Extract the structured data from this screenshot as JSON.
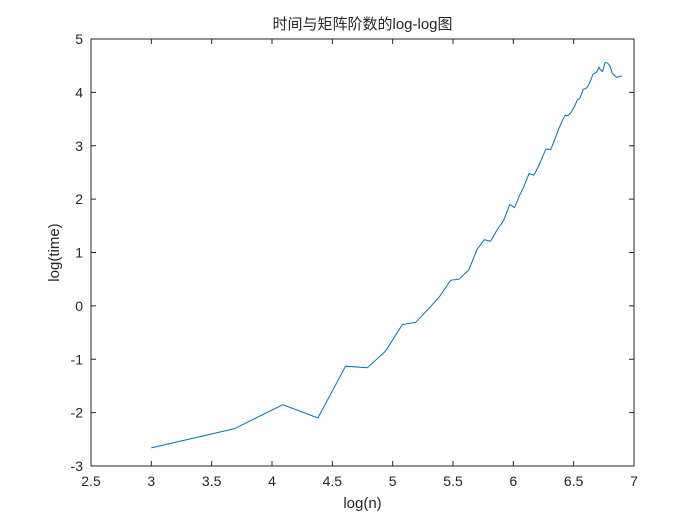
{
  "chart_data": {
    "type": "line",
    "title": "时间与矩阵阶数的log-log图",
    "xlabel": "log(n)",
    "ylabel": "log(time)",
    "xlim": [
      2.5,
      7
    ],
    "ylim": [
      -3,
      5
    ],
    "xticks": [
      2.5,
      3,
      3.5,
      4,
      4.5,
      5,
      5.5,
      6,
      6.5,
      7
    ],
    "yticks": [
      -3,
      -2,
      -1,
      0,
      1,
      2,
      3,
      4,
      5
    ],
    "xtick_labels": [
      "2.5",
      "3",
      "3.5",
      "4",
      "4.5",
      "5",
      "5.5",
      "6",
      "6.5",
      "7"
    ],
    "ytick_labels": [
      "-3",
      "-2",
      "-1",
      "0",
      "1",
      "2",
      "3",
      "4",
      "5"
    ],
    "grid": false,
    "series": [
      {
        "color": "#0072bd",
        "x": [
          3.0,
          3.69,
          4.09,
          4.38,
          4.61,
          4.79,
          4.94,
          5.08,
          5.19,
          5.3,
          5.39,
          5.48,
          5.55,
          5.63,
          5.7,
          5.76,
          5.81,
          5.87,
          5.92,
          5.97,
          6.01,
          6.05,
          6.09,
          6.13,
          6.17,
          6.21,
          6.24,
          6.27,
          6.31,
          6.34,
          6.37,
          6.4,
          6.43,
          6.45,
          6.48,
          6.51,
          6.53,
          6.55,
          6.58,
          6.6,
          6.62,
          6.64,
          6.66,
          6.69,
          6.71,
          6.72,
          6.74,
          6.76,
          6.78,
          6.8,
          6.82,
          6.84,
          6.86,
          6.88,
          6.9
        ],
        "y": [
          -2.66,
          -2.3,
          -1.85,
          -2.1,
          -1.13,
          -1.16,
          -0.85,
          -0.35,
          -0.31,
          -0.05,
          0.18,
          0.48,
          0.5,
          0.67,
          1.06,
          1.24,
          1.21,
          1.44,
          1.6,
          1.9,
          1.84,
          2.06,
          2.25,
          2.48,
          2.45,
          2.62,
          2.78,
          2.94,
          2.93,
          3.1,
          3.28,
          3.44,
          3.57,
          3.56,
          3.63,
          3.75,
          3.86,
          3.88,
          4.06,
          4.07,
          4.12,
          4.22,
          4.34,
          4.38,
          4.47,
          4.43,
          4.39,
          4.56,
          4.55,
          4.5,
          4.36,
          4.31,
          4.28,
          4.3,
          4.31
        ]
      }
    ]
  },
  "colors": {
    "line": "#0072bd",
    "axes": "#262626",
    "background": "#ffffff"
  }
}
